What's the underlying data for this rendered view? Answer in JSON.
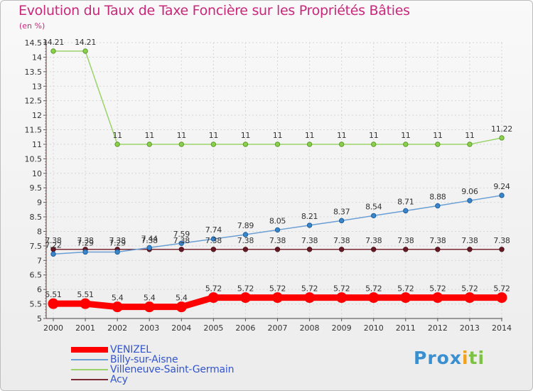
{
  "chart_data": {
    "type": "line",
    "title": "Evolution du Taux de Taxe Foncière sur les Propriétés Bâties",
    "ylabel": "(en %)",
    "xlabel": "",
    "x": [
      "2000",
      "2001",
      "2002",
      "2003",
      "2004",
      "2005",
      "2006",
      "2007",
      "2008",
      "2009",
      "2010",
      "2011",
      "2012",
      "2013",
      "2014"
    ],
    "ylim": [
      5,
      14.5
    ],
    "yticks": [
      "5",
      "5.5",
      "6",
      "6.5",
      "7",
      "7.5",
      "8",
      "8.5",
      "9",
      "9.5",
      "10",
      "10.5",
      "11",
      "11.5",
      "12",
      "12.5",
      "13",
      "13.5",
      "14",
      "14.5"
    ],
    "grid": true,
    "legend_position": "bottom-left",
    "series": [
      {
        "name": "VENIZEL",
        "color": "#ff0000",
        "values": [
          5.51,
          5.51,
          5.4,
          5.4,
          5.4,
          5.72,
          5.72,
          5.72,
          5.72,
          5.72,
          5.72,
          5.72,
          5.72,
          5.72,
          5.72
        ],
        "labels": [
          "5.51",
          "5.51",
          "5.4",
          "5.4",
          "5.4",
          "5.72",
          "5.72",
          "5.72",
          "5.72",
          "5.72",
          "5.72",
          "5.72",
          "5.72",
          "5.72",
          "5.72"
        ]
      },
      {
        "name": "Billy-sur-Aisne",
        "color": "#6a9fd4",
        "values": [
          7.22,
          7.29,
          7.29,
          7.44,
          7.59,
          7.74,
          7.89,
          8.05,
          8.21,
          8.37,
          8.54,
          8.71,
          8.88,
          9.06,
          9.24
        ],
        "labels": [
          "7.22",
          "7.29",
          "7.29",
          "7.44",
          "7.59",
          "7.74",
          "7.89",
          "8.05",
          "8.21",
          "8.37",
          "8.54",
          "8.71",
          "8.88",
          "9.06",
          "9.24"
        ]
      },
      {
        "name": "Villeneuve-Saint-Germain",
        "color": "#9ad36a",
        "values": [
          14.21,
          14.21,
          11,
          11,
          11,
          11,
          11,
          11,
          11,
          11,
          11,
          11,
          11,
          11,
          11.22
        ],
        "labels": [
          "14.21",
          "14.21",
          "11",
          "11",
          "11",
          "11",
          "11",
          "11",
          "11",
          "11",
          "11",
          "11",
          "11",
          "11",
          "11.22"
        ]
      },
      {
        "name": "Acy",
        "color": "#7a2a35",
        "values": [
          7.38,
          7.38,
          7.38,
          7.38,
          7.38,
          7.38,
          7.38,
          7.38,
          7.38,
          7.38,
          7.38,
          7.38,
          7.38,
          7.38,
          7.38
        ],
        "labels": [
          "7.38",
          "7.38",
          "7.38",
          "7.38",
          "7.38",
          "7.38",
          "7.38",
          "7.38",
          "7.38",
          "7.38",
          "7.38",
          "7.38",
          "7.38",
          "7.38",
          "7.38"
        ]
      }
    ]
  },
  "logo": {
    "text": "Prox",
    "glyph": "i",
    "text2": "ti"
  }
}
